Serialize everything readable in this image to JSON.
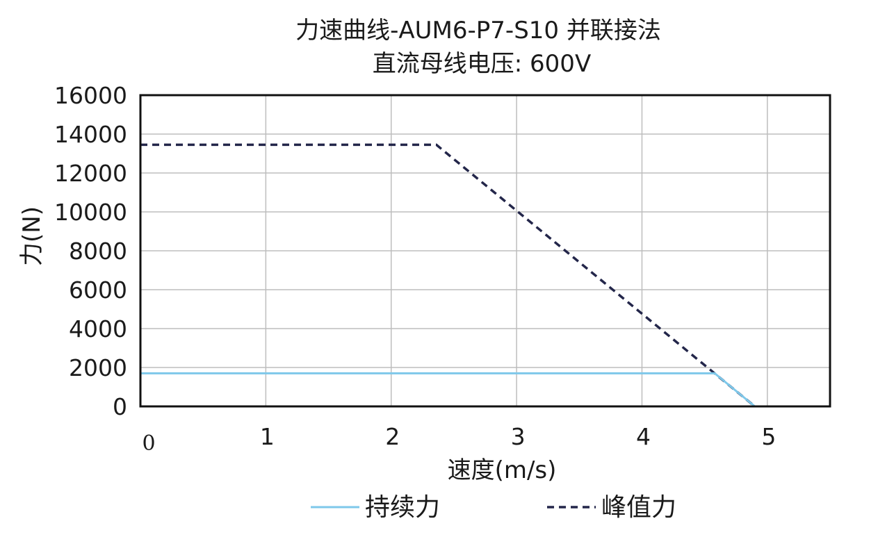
{
  "chart_data": {
    "type": "line",
    "title": "力速曲线-AUM6-P7-S10 并联接法",
    "subtitle": "直流母线电压: 600V",
    "xlabel": "速度(m/s)",
    "ylabel": "力(N)",
    "xlim": [
      0,
      5.5
    ],
    "ylim": [
      0,
      16000
    ],
    "x_ticks": [
      {
        "value": 0,
        "label": "0"
      },
      {
        "value": 1,
        "label": "1"
      },
      {
        "value": 2,
        "label": "2"
      },
      {
        "value": 3,
        "label": "3"
      },
      {
        "value": 4,
        "label": "4"
      },
      {
        "value": 5,
        "label": "5"
      }
    ],
    "y_ticks": [
      {
        "value": 0,
        "label": "0"
      },
      {
        "value": 2000,
        "label": "2000"
      },
      {
        "value": 4000,
        "label": "4000"
      },
      {
        "value": 6000,
        "label": "6000"
      },
      {
        "value": 8000,
        "label": "8000"
      },
      {
        "value": 10000,
        "label": "10000"
      },
      {
        "value": 12000,
        "label": "12000"
      },
      {
        "value": 14000,
        "label": "14000"
      },
      {
        "value": 16000,
        "label": "16000"
      }
    ],
    "grid": true,
    "legend_position": "bottom",
    "series": [
      {
        "name": "持续力",
        "color": "#7ec8ea",
        "style": "solid",
        "x": [
          0,
          4.58,
          4.9
        ],
        "y": [
          1700,
          1700,
          0
        ]
      },
      {
        "name": "峰值力",
        "color": "#23264a",
        "style": "dashed",
        "x": [
          0,
          2.36,
          4.9
        ],
        "y": [
          13450,
          13450,
          0
        ]
      }
    ]
  }
}
